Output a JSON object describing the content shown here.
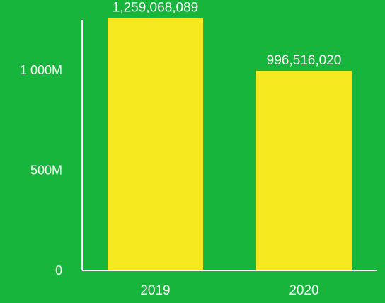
{
  "colors": {
    "background": "#17b53b",
    "bar": "#f6e81e",
    "axis": "#ffffff",
    "text": "#ffffff"
  },
  "chart_data": {
    "type": "bar",
    "categories": [
      "2019",
      "2020"
    ],
    "values": [
      1259068089,
      996516020
    ],
    "data_labels": [
      "1,259,068,089",
      "996,516,020"
    ],
    "y_ticks": [
      {
        "value": 0,
        "label": "0"
      },
      {
        "value": 500000000,
        "label": "500M"
      },
      {
        "value": 1000000000,
        "label": "1 000M"
      }
    ],
    "ylim": [
      0,
      1260000000
    ],
    "grid": false,
    "title": "",
    "xlabel": "",
    "ylabel": ""
  }
}
